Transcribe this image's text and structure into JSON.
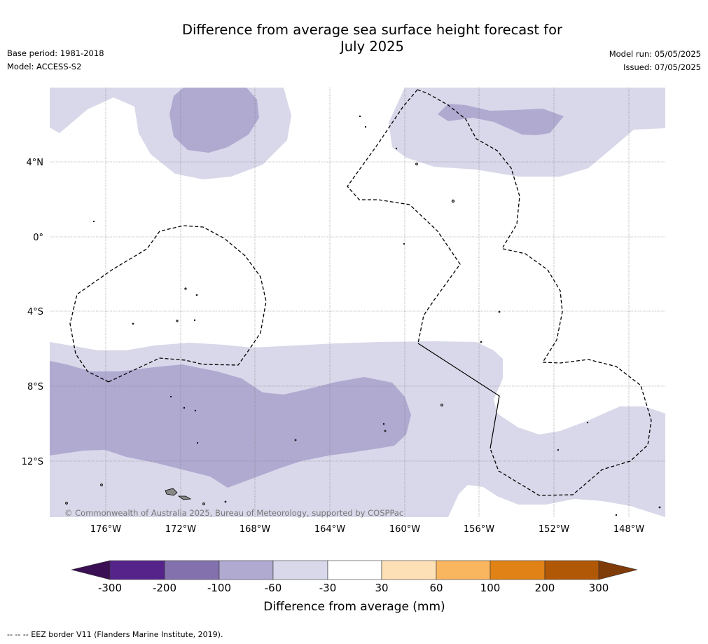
{
  "header": {
    "title_line1": "Difference from average sea surface height forecast for",
    "title_line2": "July 2025",
    "base_period": "Base period: 1981-2018",
    "model": "Model: ACCESS-S2",
    "model_run": "Model run: 05/05/2025",
    "issued": "Issued: 07/05/2025"
  },
  "map": {
    "lat_labels": [
      "4°N",
      "0°",
      "4°S",
      "8°S",
      "12°S"
    ],
    "lon_labels": [
      "176°W",
      "172°W",
      "168°W",
      "164°W",
      "160°W",
      "156°W",
      "152°W",
      "148°W"
    ],
    "copyright": "© Commonwealth of Australia 2025, Bureau of Meteorology, supported by COSPPac"
  },
  "legend": {
    "tick_labels": [
      "-300",
      "-200",
      "-100",
      "-60",
      "-30",
      "30",
      "60",
      "100",
      "200",
      "300"
    ],
    "label": "Difference from average (mm)",
    "colors": [
      "#3b0f53",
      "#56238a",
      "#8271ad",
      "#b0aad1",
      "#d8d8ea",
      "#ffffff",
      "#fee0b6",
      "#f9b65e",
      "#e08215",
      "#b15807",
      "#7f3b08"
    ]
  },
  "footer": {
    "eez_note": "--  --  -- EEZ border V11 (Flanders Marine Institute, 2019)."
  }
}
